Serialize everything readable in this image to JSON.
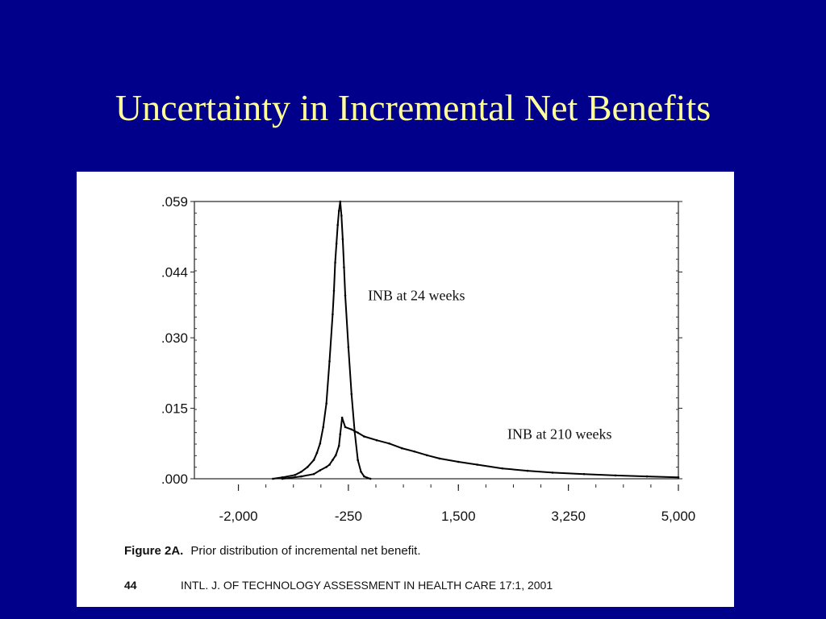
{
  "slide": {
    "title": "Uncertainty in Incremental Net Benefits"
  },
  "figure": {
    "caption_label": "Figure 2A.",
    "caption_text": "Prior distribution of incremental net benefit.",
    "page_number": "44",
    "citation": "INTL. J. OF TECHNOLOGY ASSESSMENT IN HEALTH CARE 17:1, 2001"
  },
  "chart_data": {
    "type": "line",
    "title": "",
    "xlabel": "",
    "ylabel": "",
    "xlim": [
      -2700,
      5000
    ],
    "ylim": [
      0,
      0.059
    ],
    "x_ticks": [
      -2000,
      -250,
      1500,
      3250,
      5000
    ],
    "x_tick_labels": [
      "-2,000",
      "-250",
      "1,500",
      "3,250",
      "5,000"
    ],
    "y_ticks": [
      0,
      0.015,
      0.03,
      0.044,
      0.059
    ],
    "y_tick_labels": [
      ".000",
      ".015",
      ".030",
      ".044",
      ".059"
    ],
    "grid": false,
    "legend": "none",
    "series": [
      {
        "name": "INB at 24 weeks",
        "x": [
          -1450,
          -1300,
          -1100,
          -1000,
          -900,
          -800,
          -750,
          -700,
          -650,
          -600,
          -550,
          -500,
          -480,
          -460,
          -440,
          -420,
          -400,
          -380,
          -360,
          -340,
          -320,
          -300,
          -250,
          -200,
          -150,
          -100,
          -50,
          0,
          50,
          100
        ],
        "y": [
          0,
          0.0003,
          0.0008,
          0.0015,
          0.0025,
          0.004,
          0.0055,
          0.0075,
          0.011,
          0.016,
          0.025,
          0.035,
          0.04,
          0.046,
          0.05,
          0.054,
          0.057,
          0.059,
          0.056,
          0.051,
          0.045,
          0.039,
          0.028,
          0.018,
          0.01,
          0.004,
          0.0015,
          0.0005,
          0.0002,
          0
        ]
      },
      {
        "name": "INB at 210 weeks",
        "x": [
          -1300,
          -1000,
          -800,
          -700,
          -600,
          -550,
          -500,
          -450,
          -400,
          -380,
          -350,
          -300,
          -200,
          -100,
          0,
          200,
          400,
          600,
          800,
          1000,
          1200,
          1500,
          1800,
          2200,
          2600,
          3000,
          3500,
          4000,
          4500,
          5000
        ],
        "y": [
          0,
          0.0005,
          0.001,
          0.0018,
          0.0025,
          0.003,
          0.004,
          0.005,
          0.007,
          0.0095,
          0.013,
          0.011,
          0.0105,
          0.0098,
          0.009,
          0.0082,
          0.0075,
          0.0065,
          0.0058,
          0.005,
          0.0043,
          0.0036,
          0.003,
          0.0022,
          0.0017,
          0.0013,
          0.001,
          0.0007,
          0.0005,
          0.0003
        ]
      }
    ],
    "annotations": [
      {
        "text": "INB at 24 weeks",
        "x": 60,
        "y": 0.038
      },
      {
        "text": "INB at 210 weeks",
        "x": 2280,
        "y": 0.0085
      }
    ]
  }
}
